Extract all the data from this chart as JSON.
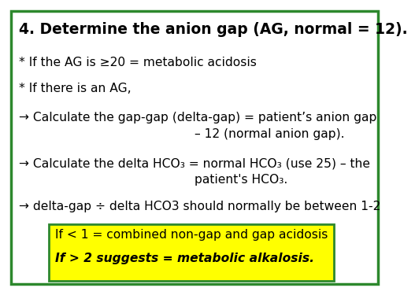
{
  "bg_color": "#ffffff",
  "border_color": "#2d882d",
  "title": "4. Determine the anion gap (AG, normal = 12).",
  "line1": "* If the AG is ≥20 = metabolic acidosis",
  "line2": "* If there is an AG,",
  "line3a": "→ Calculate the gap-gap (delta-gap) = patient’s anion gap",
  "line3b": "– 12 (normal anion gap).",
  "line4a": "→ Calculate the delta HCO₃ = normal HCO₃ (use 25) – the",
  "line4b": "patient's HCO₃.",
  "line5": "→ delta-gap ÷ delta HCO3 should normally be between 1-2",
  "box_line1": "If < 1 = combined non-gap and gap acidosis",
  "box_line2": "If > 2 suggests = metabolic alkalosis.",
  "box_facecolor": "#ffff00",
  "box_edgecolor": "#2d882d",
  "text_color": "#000000"
}
